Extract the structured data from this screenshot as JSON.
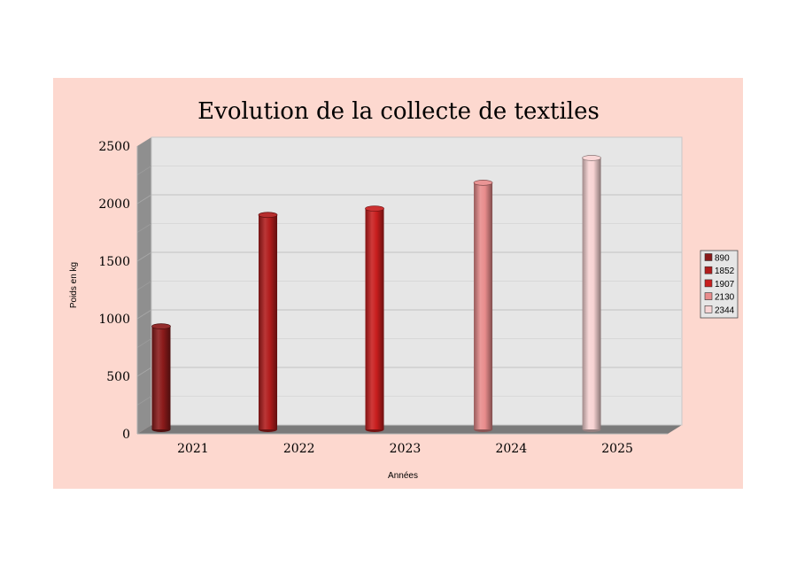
{
  "chart_data": {
    "type": "bar",
    "title": "Evolution de la collecte de textiles",
    "xlabel": "Années",
    "ylabel": "Poids en kg",
    "categories": [
      "2021",
      "2022",
      "2023",
      "2024",
      "2025"
    ],
    "values": [
      890,
      1852,
      1907,
      2130,
      2344
    ],
    "ylim": [
      0,
      2500
    ],
    "yticks": [
      0,
      500,
      1000,
      1500,
      2000,
      2500
    ],
    "grid": true,
    "legend_position": "right",
    "legend": [
      "890",
      "1852",
      "1907",
      "2130",
      "2344"
    ],
    "bar_shape": "cylinder",
    "colors": [
      "#8b1a1a",
      "#b11c1c",
      "#c81e1e",
      "#e88c8c",
      "#f8d4d4"
    ],
    "background_color": "#fdd8cf",
    "wall_color": "#e6e6e6"
  }
}
